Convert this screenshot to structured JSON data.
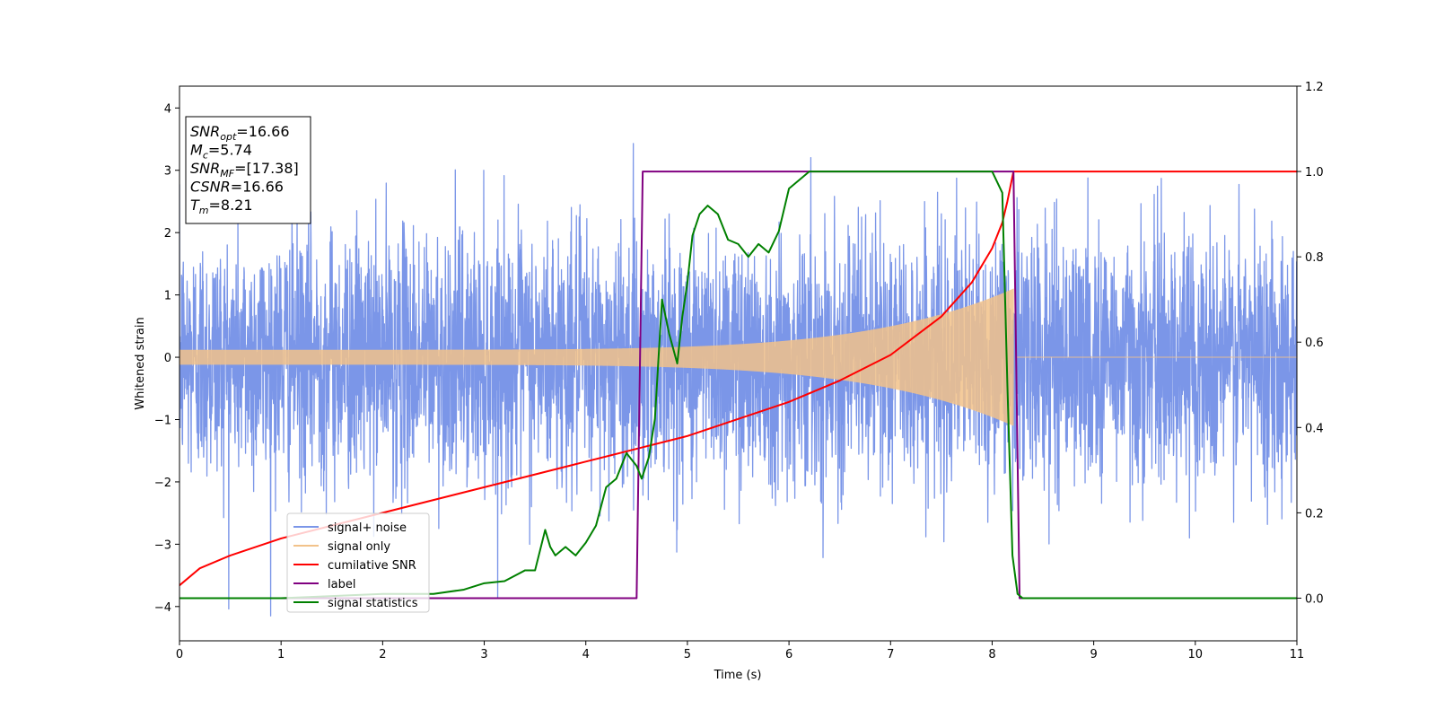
{
  "chart_data": {
    "type": "line",
    "xlabel": "Time (s)",
    "ylabel": "Whitened strain",
    "xlim": [
      0,
      11
    ],
    "ylim_left": [
      -4.55,
      4.35
    ],
    "ylim_right": [
      -0.1,
      1.2
    ],
    "x_ticks": [
      "0",
      "1",
      "2",
      "3",
      "4",
      "5",
      "6",
      "7",
      "8",
      "9",
      "10",
      "11"
    ],
    "y_ticks_left": [
      "4",
      "3",
      "2",
      "1",
      "0",
      "−1",
      "−2",
      "−3",
      "−4"
    ],
    "y_ticks_right": [
      "1.2",
      "1.0",
      "0.8",
      "0.6",
      "0.4",
      "0.2",
      "0.0"
    ],
    "grid": false,
    "legend": "lower-left",
    "info_box": {
      "lines": [
        {
          "base": "SNR",
          "sub": "opt",
          "value": "=16.66"
        },
        {
          "base": "M",
          "sub": "c",
          "value": "=5.74"
        },
        {
          "base": "SNR",
          "sub": "MF",
          "value": "=[17.38]"
        },
        {
          "base": "CSNR",
          "sub": "",
          "value": "=16.66"
        },
        {
          "base": "T",
          "sub": "m",
          "value": "=8.21"
        }
      ]
    },
    "series": [
      {
        "name": "signal+ noise",
        "color": "#7b96e8",
        "axis": "left",
        "style": "noise",
        "amplitude_sigma": 1.0,
        "end": 11
      },
      {
        "name": "signal only",
        "color": "#f2c28a",
        "axis": "left",
        "style": "chirp",
        "merger_time": 8.21,
        "amp_start": 0.12,
        "amp_end": 1.1
      },
      {
        "name": "cumilative SNR",
        "color": "#ff0000",
        "axis": "right",
        "x": [
          0,
          0.2,
          0.5,
          1,
          1.5,
          2,
          2.5,
          3,
          3.5,
          4,
          4.5,
          5,
          5.5,
          6,
          6.5,
          7,
          7.5,
          7.8,
          8.0,
          8.1,
          8.15,
          8.21,
          8.25,
          11
        ],
        "y": [
          0.03,
          0.07,
          0.1,
          0.14,
          0.17,
          0.2,
          0.23,
          0.26,
          0.29,
          0.32,
          0.35,
          0.38,
          0.42,
          0.46,
          0.51,
          0.57,
          0.66,
          0.74,
          0.82,
          0.88,
          0.93,
          1.0,
          1.0,
          1.0
        ]
      },
      {
        "name": "label",
        "color": "#800080",
        "axis": "right",
        "x": [
          0,
          4.5,
          4.56,
          8.21,
          8.27,
          11
        ],
        "y": [
          0.0,
          0.0,
          1.0,
          1.0,
          0.0,
          0.0
        ]
      },
      {
        "name": "signal statistics",
        "color": "#008000",
        "axis": "right",
        "x": [
          0,
          1,
          2,
          2.5,
          2.8,
          3,
          3.2,
          3.4,
          3.5,
          3.6,
          3.65,
          3.7,
          3.8,
          3.9,
          4.0,
          4.1,
          4.2,
          4.3,
          4.4,
          4.5,
          4.55,
          4.62,
          4.68,
          4.75,
          4.82,
          4.9,
          4.95,
          5.0,
          5.05,
          5.12,
          5.2,
          5.3,
          5.4,
          5.5,
          5.6,
          5.7,
          5.8,
          5.9,
          6.0,
          6.1,
          6.2,
          6.3,
          6.5,
          7,
          7.5,
          8.0,
          8.1,
          8.15,
          8.2,
          8.25,
          8.3,
          11
        ],
        "y": [
          0.0,
          0.0,
          0.01,
          0.01,
          0.02,
          0.035,
          0.04,
          0.065,
          0.065,
          0.16,
          0.12,
          0.1,
          0.12,
          0.1,
          0.13,
          0.17,
          0.26,
          0.28,
          0.34,
          0.31,
          0.28,
          0.33,
          0.42,
          0.7,
          0.62,
          0.55,
          0.66,
          0.74,
          0.85,
          0.9,
          0.92,
          0.9,
          0.84,
          0.83,
          0.8,
          0.83,
          0.81,
          0.86,
          0.96,
          0.98,
          1.0,
          1.0,
          1.0,
          1.0,
          1.0,
          1.0,
          0.95,
          0.5,
          0.1,
          0.01,
          0.0,
          0.0
        ]
      }
    ]
  }
}
